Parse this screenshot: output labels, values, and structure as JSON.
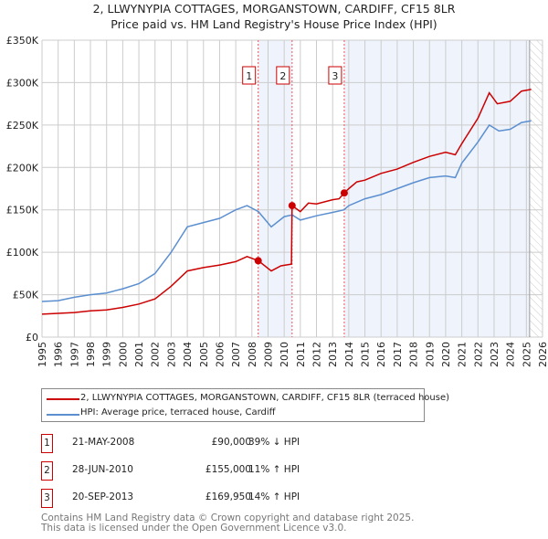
{
  "chart_data": {
    "type": "line",
    "title": "2, LLWYNYPIA COTTAGES, MORGANSTOWN, CARDIFF, CF15 8LR",
    "subtitle": "Price paid vs. HM Land Registry's House Price Index (HPI)",
    "xlim": [
      1995,
      2026
    ],
    "ylim": [
      0,
      350000
    ],
    "x_ticks": [
      "1995",
      "1996",
      "1997",
      "1998",
      "1999",
      "2000",
      "2001",
      "2002",
      "2003",
      "2004",
      "2005",
      "2006",
      "2007",
      "2008",
      "2009",
      "2010",
      "2011",
      "2012",
      "2013",
      "2014",
      "2015",
      "2016",
      "2017",
      "2018",
      "2019",
      "2020",
      "2021",
      "2022",
      "2023",
      "2024",
      "2025",
      "2026"
    ],
    "y_ticks": [
      {
        "v": 0,
        "label": "£0"
      },
      {
        "v": 50000,
        "label": "£50K"
      },
      {
        "v": 100000,
        "label": "£100K"
      },
      {
        "v": 150000,
        "label": "£150K"
      },
      {
        "v": 200000,
        "label": "£200K"
      },
      {
        "v": 250000,
        "label": "£250K"
      },
      {
        "v": 300000,
        "label": "£300K"
      },
      {
        "v": 350000,
        "label": "£350K"
      }
    ],
    "grid": true,
    "series": [
      {
        "name": "2, LLWYNYPIA COTTAGES, MORGANSTOWN, CARDIFF, CF15 8LR (terraced house)",
        "color": "#cc0000",
        "x": [
          1995,
          1996,
          1997,
          1998,
          1999,
          2000,
          2001,
          2002,
          2003,
          2004,
          2005,
          2006,
          2007,
          2007.7,
          2008.4,
          2009.2,
          2009.8,
          2010.45,
          2010.49,
          2011,
          2011.5,
          2012,
          2013,
          2013.4,
          2013.72,
          2014,
          2014.5,
          2015,
          2016,
          2017,
          2018,
          2019,
          2020,
          2020.6,
          2021,
          2022,
          2022.7,
          2023.2,
          2024,
          2024.7,
          2025.3
        ],
        "y": [
          27000,
          28000,
          29000,
          31000,
          32000,
          35000,
          39000,
          45000,
          60000,
          78000,
          82000,
          85000,
          89000,
          95000,
          90000,
          78000,
          84000,
          86000,
          155000,
          148000,
          158000,
          157000,
          162000,
          163000,
          170000,
          175000,
          183000,
          185000,
          193000,
          198000,
          206000,
          213000,
          218000,
          215000,
          228000,
          258000,
          288000,
          275000,
          278000,
          290000,
          292000
        ]
      },
      {
        "name": "HPI: Average price, terraced house, Cardiff",
        "color": "#5b8fd0",
        "x": [
          1995,
          1996,
          1997,
          1998,
          1999,
          2000,
          2001,
          2002,
          2003,
          2004,
          2005,
          2006,
          2007,
          2007.7,
          2008.4,
          2009.2,
          2010,
          2010.5,
          2011,
          2012,
          2013,
          2013.7,
          2014,
          2015,
          2016,
          2017,
          2018,
          2019,
          2020,
          2020.6,
          2021,
          2022,
          2022.7,
          2023.3,
          2024,
          2024.7,
          2025.3
        ],
        "y": [
          42000,
          43000,
          47000,
          50000,
          52000,
          57000,
          63000,
          75000,
          100000,
          130000,
          135000,
          140000,
          150000,
          155000,
          148000,
          130000,
          142000,
          144000,
          138000,
          143000,
          147000,
          150000,
          155000,
          163000,
          168000,
          175000,
          182000,
          188000,
          190000,
          188000,
          205000,
          230000,
          250000,
          243000,
          245000,
          253000,
          255000
        ]
      }
    ],
    "sales": [
      {
        "num": "1",
        "x": 2008.39,
        "price": 90000,
        "date": "21-MAY-2008",
        "price_label": "£90,000",
        "hpi": "39% ↓ HPI"
      },
      {
        "num": "2",
        "x": 2010.49,
        "price": 155000,
        "date": "28-JUN-2010",
        "price_label": "£155,000",
        "hpi": "11% ↑ HPI"
      },
      {
        "num": "3",
        "x": 2013.72,
        "price": 169950,
        "date": "20-SEP-2013",
        "price_label": "£169,950",
        "hpi": "14% ↑ HPI"
      }
    ],
    "data_end_year": 2025.2,
    "legend_position": "below"
  },
  "footer": {
    "line1": "Contains HM Land Registry data © Crown copyright and database right 2025.",
    "line2": "This data is licensed under the Open Government Licence v3.0."
  }
}
